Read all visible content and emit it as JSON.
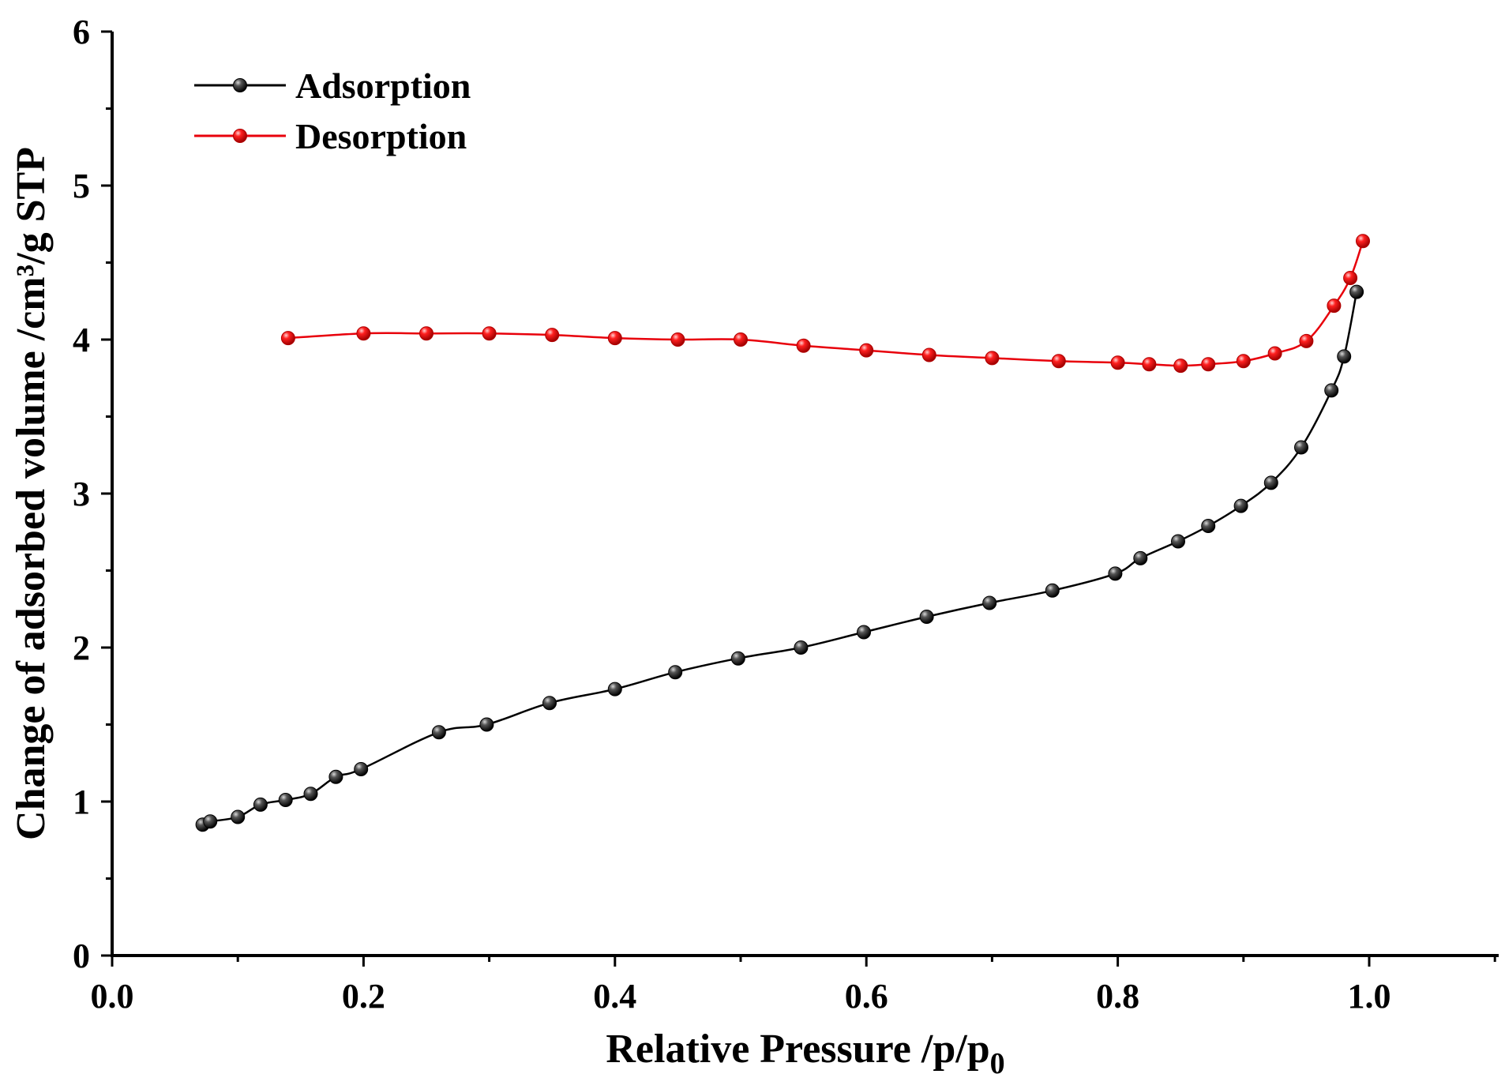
{
  "chart_data": {
    "type": "line",
    "title": "",
    "xlabel_main": "Relative Pressure /p/p",
    "xlabel_sub": "0",
    "ylabel": "Change of adsorbed volume /cm³/g STP",
    "xlim": [
      0.0,
      1.1
    ],
    "ylim": [
      0,
      6
    ],
    "x_ticks": [
      "0.0",
      "0.2",
      "0.4",
      "0.6",
      "0.8",
      "1.0"
    ],
    "y_ticks": [
      "0",
      "1",
      "2",
      "3",
      "4",
      "5",
      "6"
    ],
    "grid": false,
    "legend_position": "top-left",
    "series": [
      {
        "name": "Adsorption",
        "color": "#000000",
        "x": [
          0.072,
          0.078,
          0.1,
          0.118,
          0.138,
          0.158,
          0.178,
          0.198,
          0.26,
          0.298,
          0.348,
          0.4,
          0.448,
          0.498,
          0.548,
          0.598,
          0.648,
          0.698,
          0.748,
          0.798,
          0.818,
          0.848,
          0.872,
          0.898,
          0.922,
          0.946,
          0.97,
          0.98,
          0.99
        ],
        "y": [
          0.85,
          0.87,
          0.9,
          0.98,
          1.01,
          1.05,
          1.16,
          1.21,
          1.45,
          1.5,
          1.64,
          1.73,
          1.84,
          1.93,
          2.0,
          2.1,
          2.2,
          2.29,
          2.37,
          2.48,
          2.58,
          2.69,
          2.79,
          2.92,
          3.07,
          3.3,
          3.67,
          3.89,
          4.31
        ]
      },
      {
        "name": "Desorption",
        "color": "#e8000b",
        "x": [
          0.995,
          0.985,
          0.972,
          0.95,
          0.925,
          0.9,
          0.872,
          0.85,
          0.825,
          0.8,
          0.753,
          0.7,
          0.65,
          0.6,
          0.55,
          0.5,
          0.45,
          0.4,
          0.35,
          0.3,
          0.25,
          0.2,
          0.14
        ],
        "y": [
          4.64,
          4.4,
          4.22,
          3.99,
          3.91,
          3.86,
          3.84,
          3.83,
          3.84,
          3.85,
          3.86,
          3.88,
          3.9,
          3.93,
          3.96,
          4.0,
          4.0,
          4.01,
          4.03,
          4.04,
          4.04,
          4.04,
          4.01
        ]
      }
    ]
  },
  "colors": {
    "axis": "#000000",
    "adsorption": "#000000",
    "desorption": "#e8000b"
  }
}
